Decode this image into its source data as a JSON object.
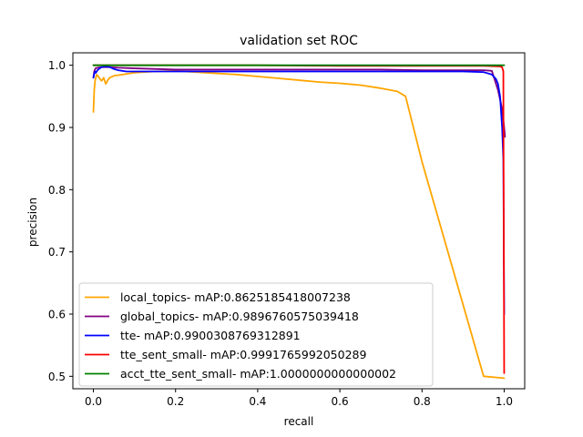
{
  "chart_data": {
    "type": "line",
    "title": "validation set ROC",
    "xlabel": "recall",
    "ylabel": "precision",
    "xlim": [
      -0.05,
      1.05
    ],
    "ylim": [
      0.48,
      1.02
    ],
    "xticks": [
      0.0,
      0.2,
      0.4,
      0.6,
      0.8,
      1.0
    ],
    "xtick_labels": [
      "0.0",
      "0.2",
      "0.4",
      "0.6",
      "0.8",
      "1.0"
    ],
    "yticks": [
      0.5,
      0.6,
      0.7,
      0.8,
      0.9,
      1.0
    ],
    "ytick_labels": [
      "0.5",
      "0.6",
      "0.7",
      "0.8",
      "0.9",
      "1.0"
    ],
    "grid": false,
    "legend_position": "lower-left",
    "series": [
      {
        "name": "local_topics- mAP:0.8625185418007238",
        "color": "#ffa500",
        "x": [
          0.0,
          0.002,
          0.004,
          0.008,
          0.012,
          0.016,
          0.02,
          0.025,
          0.03,
          0.035,
          0.04,
          0.05,
          0.06,
          0.08,
          0.1,
          0.12,
          0.15,
          0.2,
          0.25,
          0.3,
          0.35,
          0.4,
          0.45,
          0.5,
          0.55,
          0.6,
          0.65,
          0.7,
          0.74,
          0.76,
          0.8,
          0.85,
          0.9,
          0.95,
          1.0
        ],
        "y": [
          0.925,
          0.96,
          0.975,
          0.985,
          0.982,
          0.978,
          0.975,
          0.98,
          0.97,
          0.976,
          0.98,
          0.983,
          0.984,
          0.986,
          0.988,
          0.989,
          0.99,
          0.991,
          0.989,
          0.987,
          0.985,
          0.982,
          0.979,
          0.976,
          0.973,
          0.971,
          0.968,
          0.963,
          0.958,
          0.95,
          0.845,
          0.73,
          0.615,
          0.5,
          0.497
        ]
      },
      {
        "name": "global_topics- mAP:0.9896760575039418",
        "color": "#800080",
        "x": [
          0.0,
          0.002,
          0.005,
          0.01,
          0.02,
          0.04,
          0.06,
          0.1,
          0.2,
          0.3,
          0.4,
          0.5,
          0.6,
          0.7,
          0.8,
          0.9,
          0.95,
          0.97,
          0.985,
          0.995,
          1.0,
          1.002
        ],
        "y": [
          0.98,
          0.99,
          0.995,
          0.996,
          0.997,
          0.997,
          0.996,
          0.995,
          0.993,
          0.993,
          0.993,
          0.993,
          0.993,
          0.993,
          0.992,
          0.992,
          0.992,
          0.991,
          0.96,
          0.93,
          0.9,
          0.885
        ]
      },
      {
        "name": "tte- mAP:0.9900308769312891",
        "color": "#0000ff",
        "x": [
          0.0,
          0.002,
          0.004,
          0.006,
          0.01,
          0.015,
          0.02,
          0.03,
          0.04,
          0.05,
          0.06,
          0.08,
          0.1,
          0.15,
          0.2,
          0.3,
          0.4,
          0.5,
          0.6,
          0.7,
          0.8,
          0.9,
          0.95,
          0.97,
          0.98,
          0.985,
          0.99,
          0.995,
          0.998,
          1.0
        ],
        "y": [
          0.98,
          0.986,
          0.99,
          0.988,
          0.992,
          0.995,
          0.997,
          0.998,
          0.997,
          0.994,
          0.992,
          0.99,
          0.99,
          0.99,
          0.99,
          0.99,
          0.99,
          0.99,
          0.99,
          0.99,
          0.99,
          0.99,
          0.989,
          0.985,
          0.978,
          0.97,
          0.95,
          0.9,
          0.85,
          0.6
        ]
      },
      {
        "name": "tte_sent_small- mAP:0.9991765992050289",
        "color": "#ff0000",
        "x": [
          0.0,
          0.1,
          0.2,
          0.4,
          0.6,
          0.8,
          0.9,
          0.95,
          0.99,
          0.995,
          0.998,
          1.0
        ],
        "y": [
          1.0,
          1.0,
          1.0,
          1.0,
          0.999,
          0.999,
          0.999,
          0.999,
          0.998,
          0.997,
          0.99,
          0.505
        ]
      },
      {
        "name": "acct_tte_sent_small- mAP:1.0000000000000002",
        "color": "#008000",
        "x": [
          0.0,
          1.0
        ],
        "y": [
          1.0,
          1.0
        ]
      }
    ]
  }
}
